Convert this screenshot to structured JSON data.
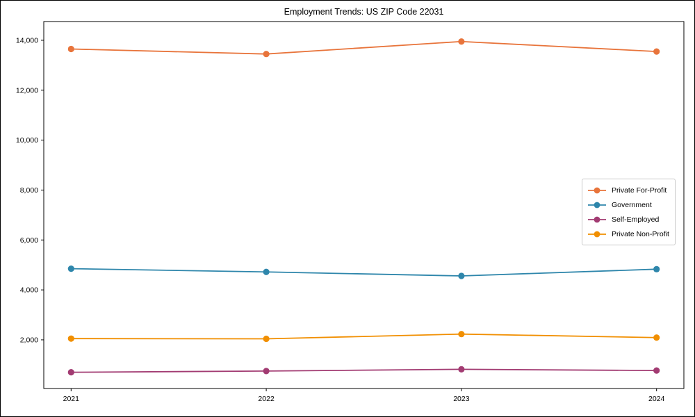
{
  "figure": {
    "title": "Employment Trends: US ZIP Code 22031"
  },
  "chart_data": {
    "type": "line",
    "title": "Employment Trends: US ZIP Code 22031",
    "x": [
      2021,
      2022,
      2023,
      2024
    ],
    "xtick_labels": [
      "2021",
      "2022",
      "2023",
      "2024"
    ],
    "yticks": [
      2000,
      4000,
      6000,
      8000,
      10000,
      12000,
      14000
    ],
    "ytick_labels": [
      "2,000",
      "4,000",
      "6,000",
      "8,000",
      "10,000",
      "12,000",
      "14,000"
    ],
    "xlabel": "",
    "ylabel": "",
    "xlim": [
      2020.86,
      2024.14
    ],
    "ylim": [
      50,
      14750
    ],
    "grid": false,
    "marker": "circle",
    "legend_position": "middle-right",
    "axis_color": "#000000",
    "series": [
      {
        "name": "Private For-Profit",
        "color": "#E8743B",
        "values": [
          13650,
          13450,
          13950,
          13550
        ]
      },
      {
        "name": "Government",
        "color": "#2E86AB",
        "values": [
          4850,
          4720,
          4560,
          4830
        ]
      },
      {
        "name": "Self-Employed",
        "color": "#A23B72",
        "values": [
          700,
          750,
          820,
          770
        ]
      },
      {
        "name": "Private Non-Profit",
        "color": "#F18F01",
        "values": [
          2050,
          2040,
          2230,
          2090
        ]
      }
    ]
  }
}
